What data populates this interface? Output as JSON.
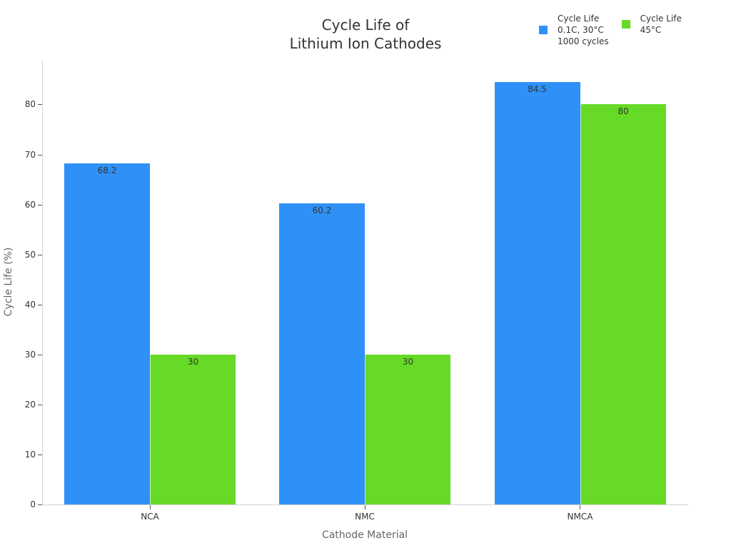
{
  "chart_data": {
    "type": "bar",
    "title": "Cycle Life of Lithium Ion Cathodes",
    "title_lines": [
      "Cycle Life of",
      "Lithium Ion Cathodes"
    ],
    "xlabel": "Cathode Material",
    "ylabel": "Cycle Life (%)",
    "categories": [
      "NCA",
      "NMC",
      "NMCA"
    ],
    "series": [
      {
        "name": "Cycle Life 0.1C, 30°C 1000 cycles",
        "legend_lines": [
          "Cycle Life",
          "0.1C, 30°C",
          "1000 cycles"
        ],
        "color": "#2f91f8",
        "values": [
          68.2,
          60.2,
          84.5
        ],
        "labels": [
          "68.2",
          "60.2",
          "84.5"
        ]
      },
      {
        "name": "Cycle Life 45°C",
        "legend_lines": [
          "Cycle Life",
          "45°C"
        ],
        "color": "#66da26",
        "values": [
          30,
          30,
          80
        ],
        "labels": [
          "30",
          "30",
          "80"
        ]
      }
    ],
    "yticks": [
      "0",
      "10",
      "20",
      "30",
      "40",
      "50",
      "60",
      "70",
      "80"
    ],
    "ylim": [
      0,
      89
    ],
    "grid": false,
    "legend_position": "top-right"
  }
}
